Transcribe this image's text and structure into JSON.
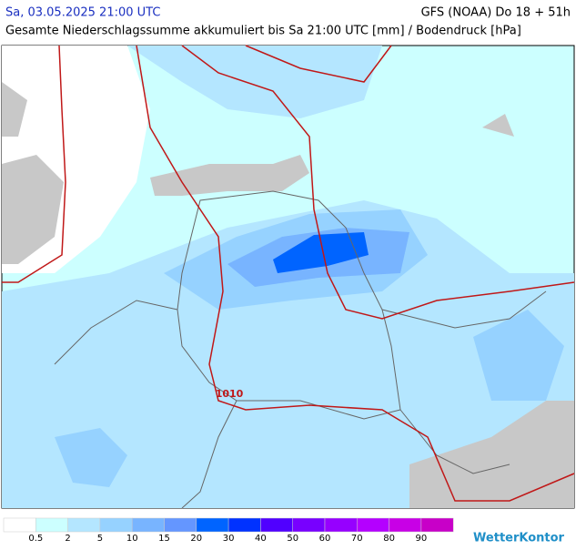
{
  "header": {
    "valid_time": "Sa, 03.05.2025 21:00 UTC",
    "model_run": "GFS (NOAA) Do 18 + 51h",
    "description": "Gesamte Niederschlagssumme akkumuliert bis Sa 21:00 UTC [mm] / Bodendruck [hPa]"
  },
  "map": {
    "isobar_labels": [
      "1010"
    ]
  },
  "legend": {
    "colors": [
      "#ffffff",
      "#ccffff",
      "#b4e6ff",
      "#96d2ff",
      "#78b4ff",
      "#6496ff",
      "#0064ff",
      "#0032ff",
      "#5000ff",
      "#7800ff",
      "#9600ff",
      "#b400ff",
      "#c800e6",
      "#c800c8"
    ],
    "thresholds": [
      0.5,
      2,
      5,
      10,
      15,
      20,
      30,
      40,
      50,
      60,
      70,
      80,
      90
    ]
  },
  "footer": {
    "logo": "WetterKontor"
  }
}
